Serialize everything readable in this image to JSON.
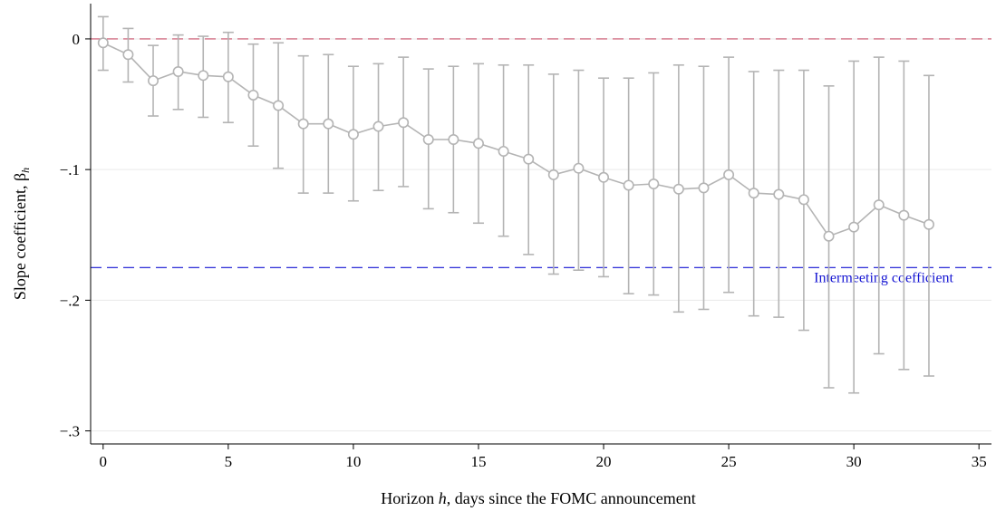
{
  "chart_data": {
    "type": "line",
    "title": "",
    "xlabel": {
      "prefix": "Horizon ",
      "var": "h",
      "suffix": ", days since the FOMC announcement"
    },
    "ylabel": {
      "main": "Slope coefficient, β",
      "sub": "h"
    },
    "xlim": [
      -0.5,
      35.5
    ],
    "ylim": [
      -0.31,
      0.027
    ],
    "xticks": [
      0,
      5,
      10,
      15,
      20,
      25,
      30,
      35
    ],
    "yticks": [
      0,
      -0.1,
      -0.2,
      -0.3
    ],
    "ytick_labels": [
      "0",
      "-.1",
      "-.2",
      "-.3"
    ],
    "grid": "horizontal",
    "reference_lines": [
      {
        "y": 0,
        "color": "#c8506a",
        "style": "dashed"
      },
      {
        "y": -0.175,
        "color": "#1414d2",
        "style": "dashed",
        "label": "Intermeeting coefficient"
      }
    ],
    "series": [
      {
        "color": "#b4b4b4",
        "x": [
          0,
          1,
          2,
          3,
          4,
          5,
          6,
          7,
          8,
          9,
          10,
          11,
          12,
          13,
          14,
          15,
          16,
          17,
          18,
          19,
          20,
          21,
          22,
          23,
          24,
          25,
          26,
          27,
          28,
          29,
          30,
          31,
          32,
          33
        ],
        "y": [
          -0.003,
          -0.012,
          -0.032,
          -0.025,
          -0.028,
          -0.029,
          -0.043,
          -0.051,
          -0.065,
          -0.065,
          -0.073,
          -0.067,
          -0.064,
          -0.077,
          -0.077,
          -0.08,
          -0.086,
          -0.092,
          -0.104,
          -0.099,
          -0.106,
          -0.112,
          -0.111,
          -0.115,
          -0.114,
          -0.104,
          -0.118,
          -0.119,
          -0.123,
          -0.151,
          -0.144,
          -0.127,
          -0.135,
          -0.142
        ],
        "ci_low": [
          -0.024,
          -0.033,
          -0.059,
          -0.054,
          -0.06,
          -0.064,
          -0.082,
          -0.099,
          -0.118,
          -0.118,
          -0.124,
          -0.116,
          -0.113,
          -0.13,
          -0.133,
          -0.141,
          -0.151,
          -0.165,
          -0.18,
          -0.177,
          -0.182,
          -0.195,
          -0.196,
          -0.209,
          -0.207,
          -0.194,
          -0.212,
          -0.213,
          -0.223,
          -0.267,
          -0.271,
          -0.241,
          -0.253,
          -0.258
        ],
        "ci_high": [
          0.017,
          0.008,
          -0.005,
          0.003,
          0.002,
          0.005,
          -0.004,
          -0.003,
          -0.013,
          -0.012,
          -0.021,
          -0.019,
          -0.014,
          -0.023,
          -0.021,
          -0.019,
          -0.02,
          -0.02,
          -0.027,
          -0.024,
          -0.03,
          -0.03,
          -0.026,
          -0.02,
          -0.021,
          -0.014,
          -0.025,
          -0.024,
          -0.024,
          -0.036,
          -0.017,
          -0.014,
          -0.017,
          -0.028
        ]
      }
    ]
  }
}
